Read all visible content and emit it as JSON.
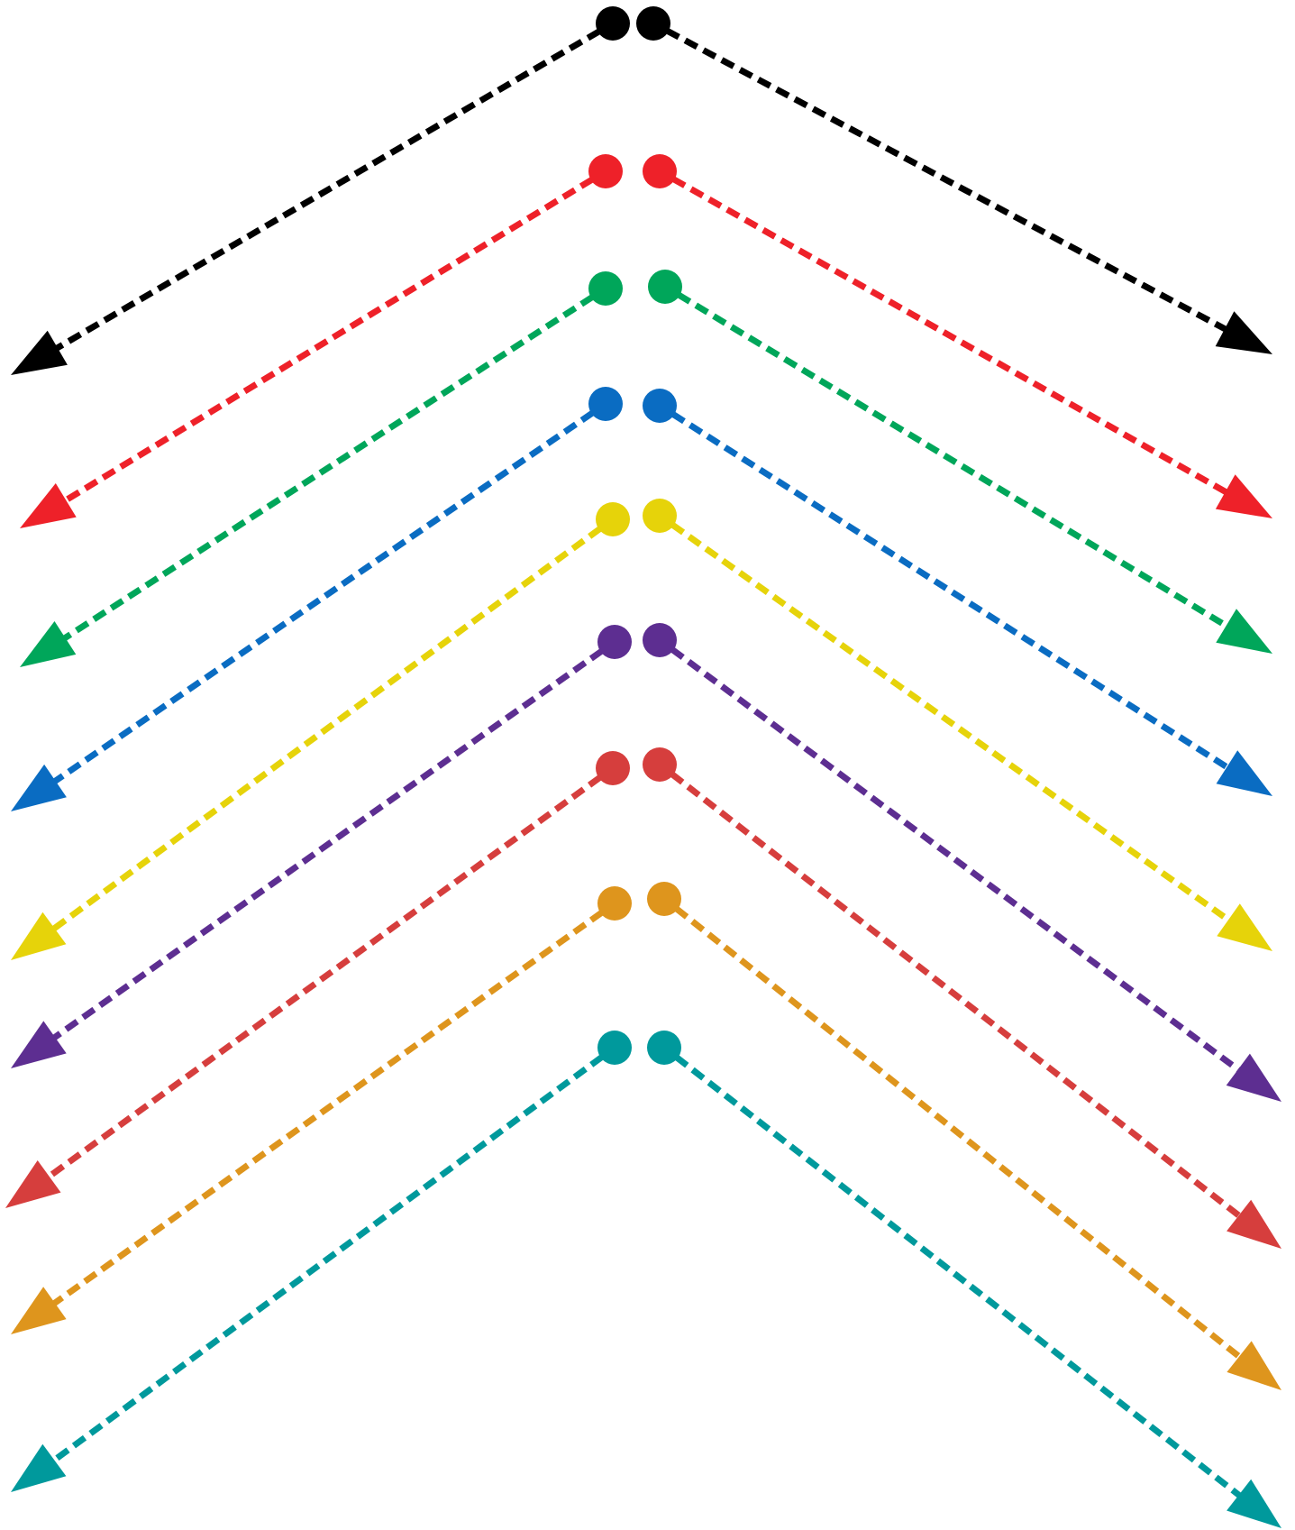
{
  "diagram": {
    "background": "#ffffff",
    "arrow_pairs": [
      {
        "color_name": "black",
        "color": "#000000"
      },
      {
        "color_name": "red",
        "color": "#ee2129"
      },
      {
        "color_name": "green",
        "color": "#00a65a"
      },
      {
        "color_name": "blue",
        "color": "#0a6cc2"
      },
      {
        "color_name": "yellow",
        "color": "#e6d30a"
      },
      {
        "color_name": "purple",
        "color": "#5d2e91"
      },
      {
        "color_name": "brick-red",
        "color": "#d63e3d"
      },
      {
        "color_name": "orange",
        "color": "#de951d"
      },
      {
        "color_name": "teal",
        "color": "#00999c"
      }
    ]
  }
}
